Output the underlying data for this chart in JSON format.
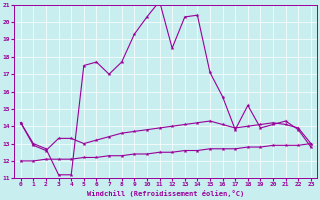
{
  "xlabel": "Windchill (Refroidissement éolien,°C)",
  "xlim": [
    -0.5,
    23.5
  ],
  "ylim": [
    11,
    21
  ],
  "yticks": [
    11,
    12,
    13,
    14,
    15,
    16,
    17,
    18,
    19,
    20,
    21
  ],
  "xticks": [
    0,
    1,
    2,
    3,
    4,
    5,
    6,
    7,
    8,
    9,
    10,
    11,
    12,
    13,
    14,
    15,
    16,
    17,
    18,
    19,
    20,
    21,
    22,
    23
  ],
  "bg_color": "#c8eef0",
  "line_color": "#990099",
  "grid_color": "#ffffff",
  "line1_x": [
    0,
    1,
    2,
    3,
    4,
    5,
    6,
    7,
    8,
    9,
    10,
    11,
    12,
    13,
    14,
    15,
    16,
    17,
    18,
    19,
    20,
    21,
    22,
    23
  ],
  "line1_y": [
    14.2,
    13.0,
    12.7,
    11.2,
    11.2,
    17.5,
    17.7,
    17.0,
    17.7,
    19.3,
    20.3,
    21.2,
    18.5,
    20.3,
    20.4,
    17.1,
    15.7,
    13.8,
    15.2,
    13.9,
    14.1,
    14.3,
    13.8,
    12.8
  ],
  "line2_x": [
    0,
    1,
    2,
    3,
    4,
    5,
    6,
    7,
    8,
    9,
    10,
    11,
    12,
    13,
    14,
    15,
    16,
    17,
    18,
    19,
    20,
    21,
    22,
    23
  ],
  "line2_y": [
    14.2,
    12.9,
    12.6,
    13.3,
    13.3,
    13.0,
    13.2,
    13.4,
    13.6,
    13.7,
    13.8,
    13.9,
    14.0,
    14.1,
    14.2,
    14.3,
    14.1,
    13.9,
    14.0,
    14.1,
    14.2,
    14.1,
    13.9,
    13.0
  ],
  "line3_x": [
    0,
    1,
    2,
    3,
    4,
    5,
    6,
    7,
    8,
    9,
    10,
    11,
    12,
    13,
    14,
    15,
    16,
    17,
    18,
    19,
    20,
    21,
    22,
    23
  ],
  "line3_y": [
    12.0,
    12.0,
    12.1,
    12.1,
    12.1,
    12.2,
    12.2,
    12.3,
    12.3,
    12.4,
    12.4,
    12.5,
    12.5,
    12.6,
    12.6,
    12.7,
    12.7,
    12.7,
    12.8,
    12.8,
    12.9,
    12.9,
    12.9,
    13.0
  ]
}
